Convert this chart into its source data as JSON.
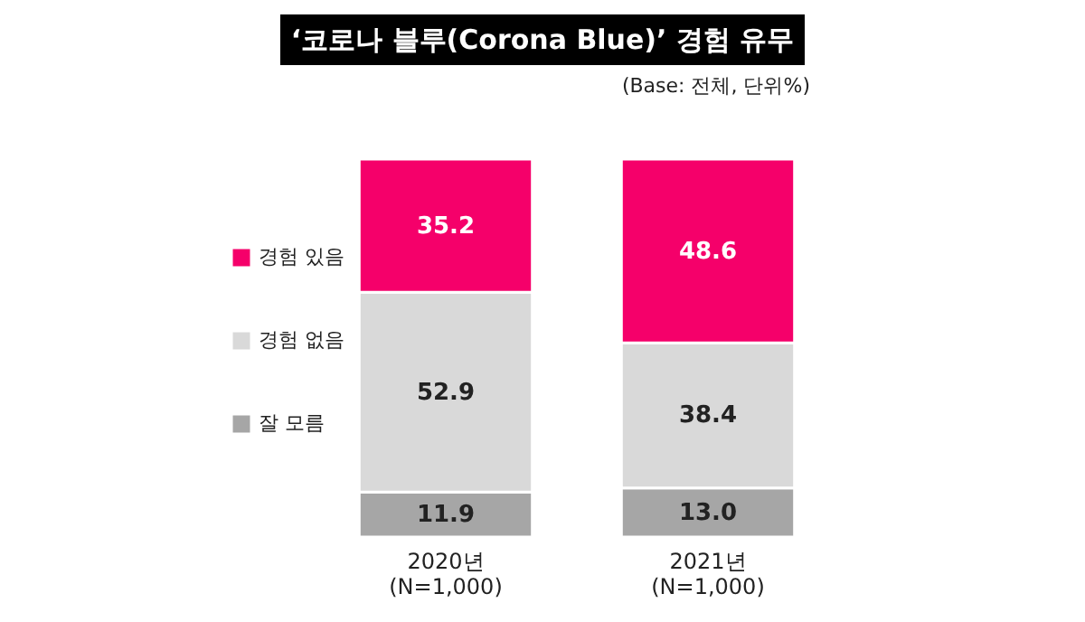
{
  "chart_data": {
    "type": "bar",
    "title": "‘코로나 블루(Corona Blue)’ 경험 유무",
    "annotations": [
      "(Base: 전체, 단위%)"
    ],
    "categories": [
      "2020년\n(N=1,000)",
      "2021년\n(N=1,000)"
    ],
    "stacked": true,
    "legend": "left",
    "series": [
      {
        "name": "잘 모름",
        "color": "#a6a6a6",
        "values": [
          11.9,
          13.0
        ],
        "value_labels": [
          "11.9",
          "13.0"
        ]
      },
      {
        "name": "경험 없음",
        "color": "#d9d9d9",
        "values": [
          52.9,
          38.4
        ],
        "value_labels": [
          "52.9",
          "38.4"
        ]
      },
      {
        "name": "경험 있음",
        "color": "#f5006a",
        "values": [
          35.2,
          48.6
        ],
        "value_labels": [
          "35.2",
          "48.6"
        ]
      }
    ]
  }
}
